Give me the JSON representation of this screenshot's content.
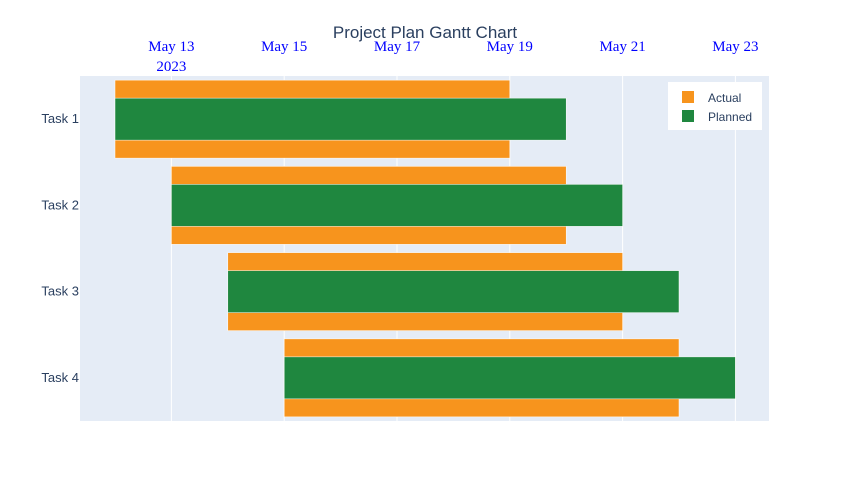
{
  "colors": {
    "plot_bg": "#e5ecf6",
    "grid": "#ffffff",
    "actual": "#f7941d",
    "planned": "#1f873f",
    "title": "#2a3f5f",
    "xtick": "#0000ff"
  },
  "chart_data": {
    "type": "gantt",
    "title": "Project Plan Gantt Chart",
    "x_axis": {
      "type": "date",
      "side": "top",
      "range_days": [
        "2023-05-12",
        "2023-05-23"
      ],
      "tick_days": [
        "2023-05-13",
        "2023-05-15",
        "2023-05-17",
        "2023-05-19",
        "2023-05-21",
        "2023-05-23"
      ],
      "tick_labels": [
        "May 13",
        "May 15",
        "May 17",
        "May 19",
        "May 21",
        "May 23"
      ],
      "year_label": "2023"
    },
    "categories": [
      "Task 1",
      "Task 2",
      "Task 3",
      "Task 4"
    ],
    "series": [
      {
        "name": "Actual",
        "bars": [
          {
            "task": "Task 1",
            "start": "2023-05-12",
            "end": "2023-05-19"
          },
          {
            "task": "Task 2",
            "start": "2023-05-13",
            "end": "2023-05-20"
          },
          {
            "task": "Task 3",
            "start": "2023-05-14",
            "end": "2023-05-21"
          },
          {
            "task": "Task 4",
            "start": "2023-05-15",
            "end": "2023-05-22"
          }
        ]
      },
      {
        "name": "Planned",
        "bars": [
          {
            "task": "Task 1",
            "start": "2023-05-12",
            "end": "2023-05-20"
          },
          {
            "task": "Task 2",
            "start": "2023-05-13",
            "end": "2023-05-21"
          },
          {
            "task": "Task 3",
            "start": "2023-05-14",
            "end": "2023-05-22"
          },
          {
            "task": "Task 4",
            "start": "2023-05-15",
            "end": "2023-05-23"
          }
        ]
      }
    ],
    "legend": {
      "position": "top-right",
      "entries": [
        "Actual",
        "Planned"
      ]
    }
  }
}
